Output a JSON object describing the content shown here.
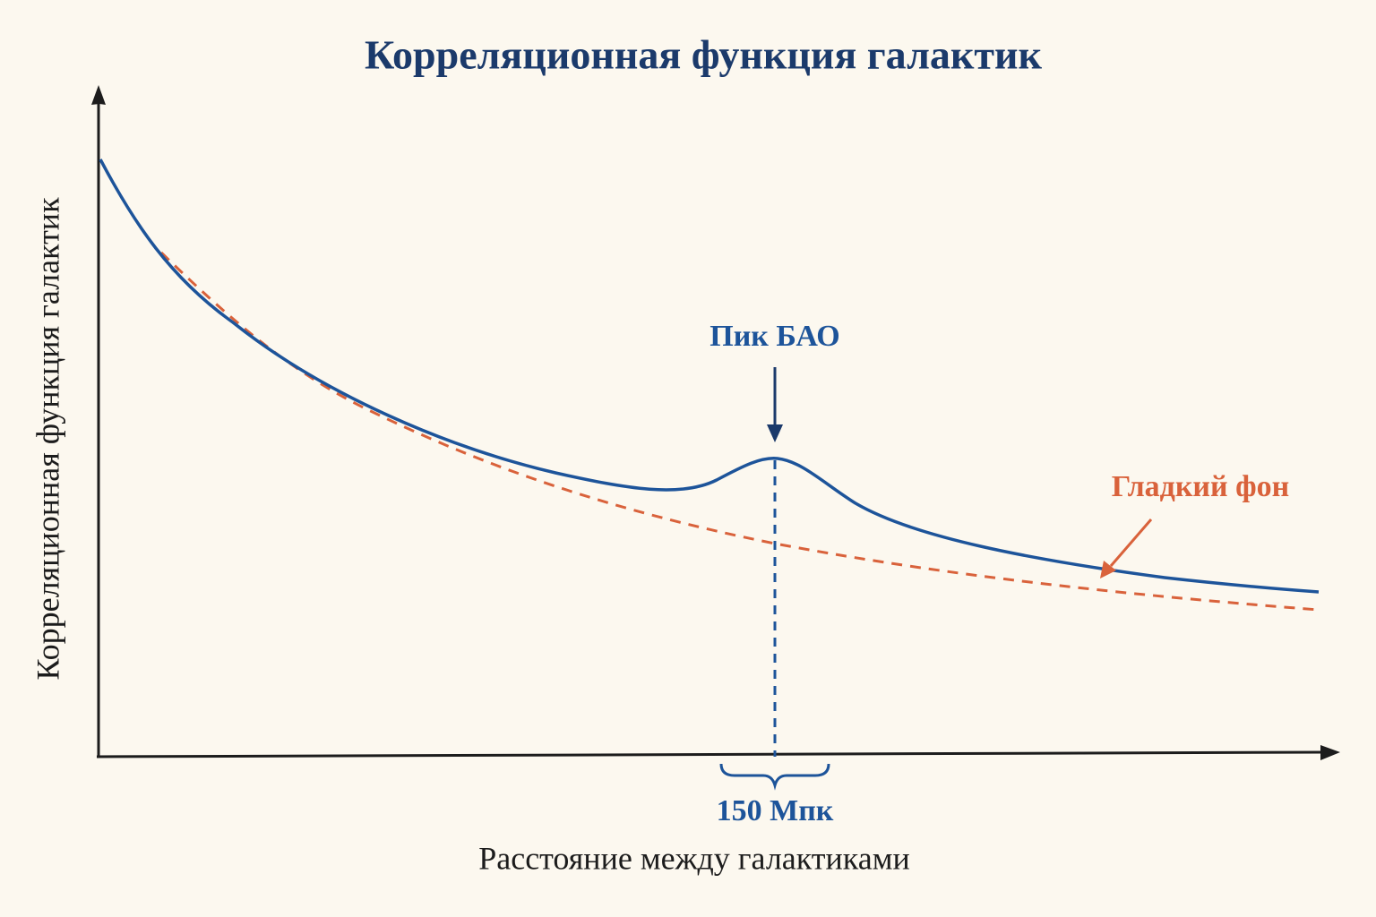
{
  "header": {
    "title": "Корреляционная функция галактик"
  },
  "axes": {
    "y_label": "Корреляционная функция галактик",
    "x_label": "Расстояние между галактиками"
  },
  "annotations": {
    "peak": "Пик БАО",
    "background": "Гладкий фон",
    "scale": "150 Мпк"
  }
}
